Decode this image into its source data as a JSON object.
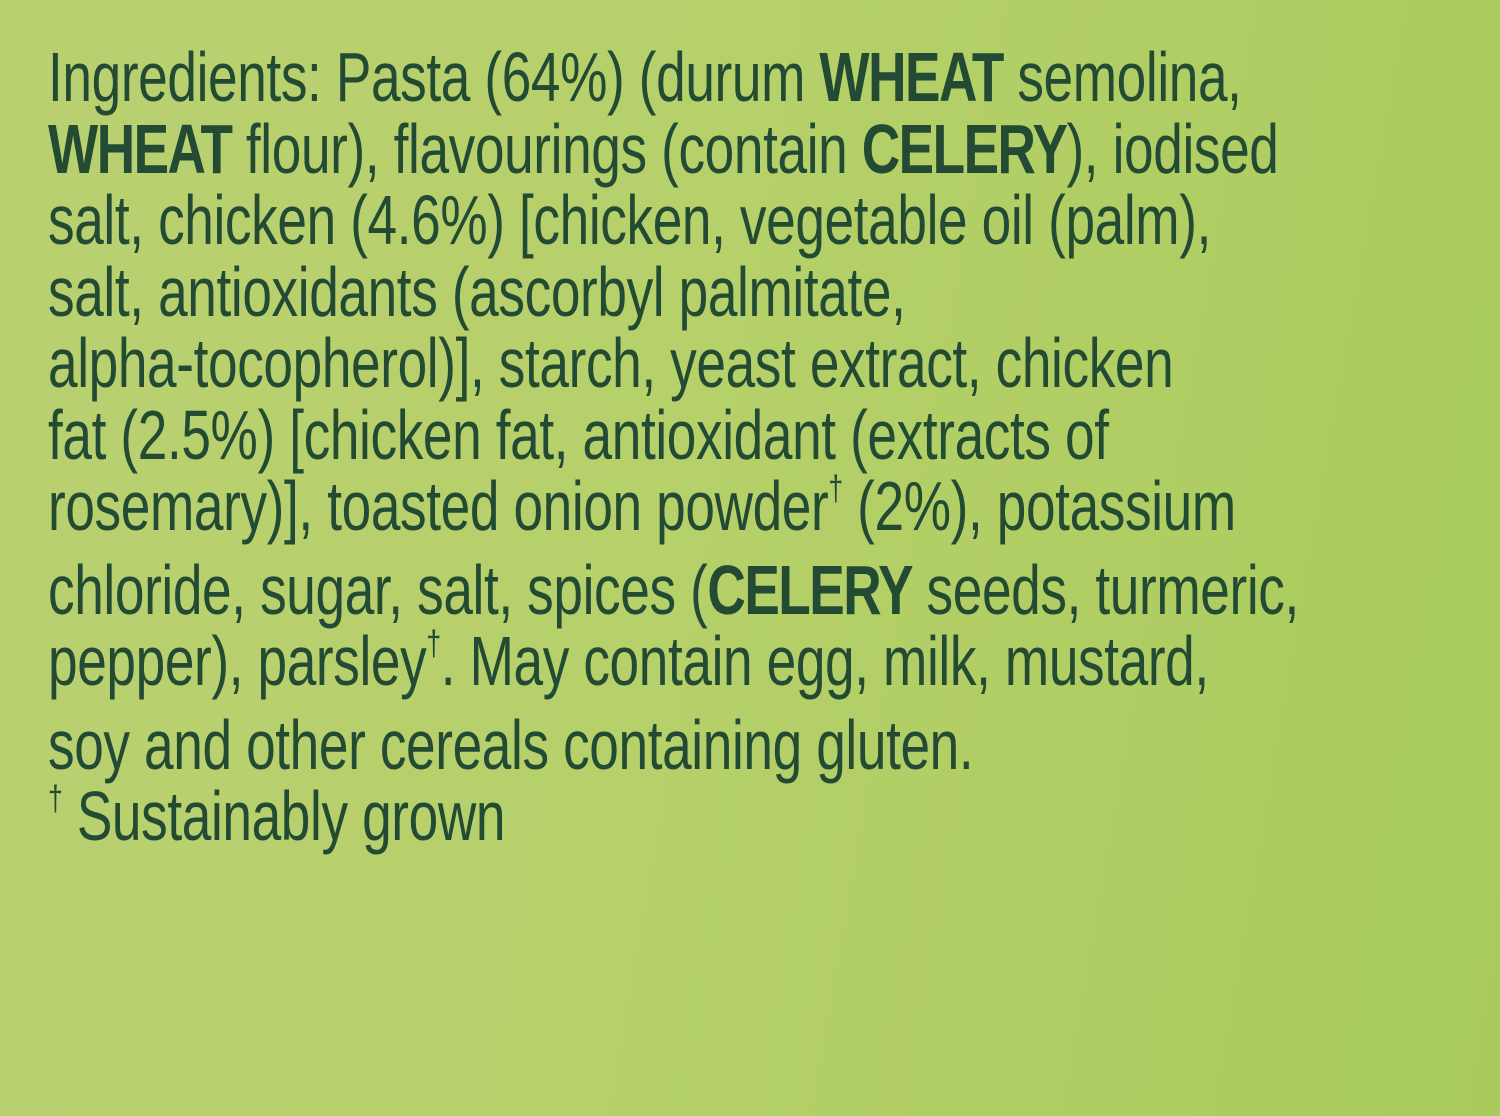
{
  "colors": {
    "background": "#b6d06a",
    "text": "#234a33"
  },
  "ingredients": {
    "lines": [
      [
        {
          "t": "Ingredients: Pasta (64%) (durum "
        },
        {
          "t": "WHEAT",
          "b": true
        },
        {
          "t": " semolina,"
        }
      ],
      [
        {
          "t": "WHEAT",
          "b": true
        },
        {
          "t": " flour), flavourings (contain "
        },
        {
          "t": "CELERY",
          "b": true
        },
        {
          "t": "), iodised"
        }
      ],
      [
        {
          "t": "salt, chicken (4.6%) [chicken, vegetable oil (palm),"
        }
      ],
      [
        {
          "t": "salt, antioxidants (ascorbyl palmitate,"
        }
      ],
      [
        {
          "t": "alpha-tocopherol)], starch, yeast extract, chicken"
        }
      ],
      [
        {
          "t": "fat (2.5%) [chicken fat, antioxidant (extracts of"
        }
      ],
      [
        {
          "t": "rosemary)], toasted onion powder"
        },
        {
          "t": "†",
          "sup": true
        },
        {
          "t": " (2%), potassium"
        }
      ],
      [
        {
          "t": "chloride, sugar, salt, spices ("
        },
        {
          "t": "CELERY",
          "b": true
        },
        {
          "t": " seeds, turmeric,"
        }
      ],
      [
        {
          "t": "pepper), parsley"
        },
        {
          "t": "†",
          "sup": true
        },
        {
          "t": ". May contain egg, milk, mustard,"
        }
      ],
      [
        {
          "t": "soy and other cereals containing gluten."
        }
      ],
      [
        {
          "t": "†",
          "sup": true
        },
        {
          "t": " Sustainably grown"
        }
      ]
    ]
  }
}
